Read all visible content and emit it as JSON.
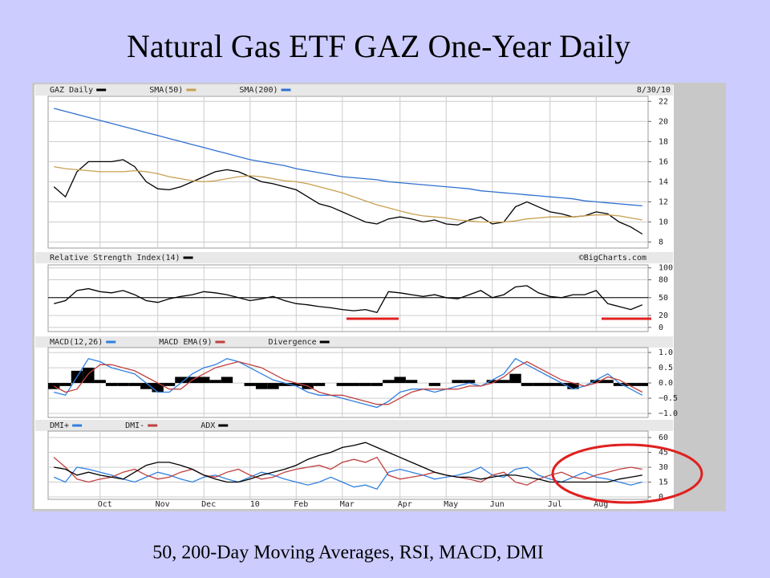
{
  "title": "Natural Gas ETF GAZ One-Year Daily",
  "caption": "50, 200-Day Moving Averages, RSI, MACD, DMI",
  "chart_data": [
    {
      "type": "line",
      "date": "8/30/10",
      "ylim": [
        7.4,
        22.5
      ],
      "yticks": [
        8,
        10,
        12,
        14,
        16,
        18,
        20,
        22
      ],
      "grid": true,
      "series": [
        {
          "name": "GAZ Daily",
          "color": "#000000",
          "values": [
            13.5,
            12.5,
            15,
            16,
            16,
            16,
            16.2,
            15.5,
            14,
            13.3,
            13.2,
            13.5,
            14,
            14.5,
            15,
            15.2,
            15,
            14.5,
            14,
            13.8,
            13.5,
            13.2,
            12.5,
            11.8,
            11.5,
            11,
            10.5,
            10,
            9.8,
            10.3,
            10.5,
            10.3,
            10,
            10.2,
            9.8,
            9.7,
            10.2,
            10.5,
            9.8,
            10,
            11.5,
            12,
            11.5,
            11,
            10.8,
            10.5,
            10.6,
            11,
            10.8,
            10,
            9.5,
            8.8
          ]
        },
        {
          "name": "SMA(50)",
          "color": "#c8a050",
          "values": [
            15.5,
            15.3,
            15.2,
            15.1,
            15.0,
            15.0,
            15.0,
            15.1,
            15.0,
            14.8,
            14.5,
            14.3,
            14.1,
            14.0,
            14.1,
            14.3,
            14.5,
            14.6,
            14.5,
            14.3,
            14.1,
            14.0,
            13.8,
            13.5,
            13.2,
            12.9,
            12.5,
            12.1,
            11.7,
            11.4,
            11.1,
            10.8,
            10.6,
            10.5,
            10.4,
            10.2,
            10.1,
            10.0,
            10.0,
            10.0,
            10.1,
            10.3,
            10.4,
            10.5,
            10.5,
            10.5,
            10.6,
            10.7,
            10.7,
            10.6,
            10.4,
            10.2
          ]
        },
        {
          "name": "SMA(200)",
          "color": "#3070d0",
          "values": [
            21.3,
            21.0,
            20.7,
            20.4,
            20.1,
            19.8,
            19.5,
            19.2,
            18.9,
            18.6,
            18.3,
            18.0,
            17.7,
            17.4,
            17.1,
            16.8,
            16.5,
            16.2,
            16.0,
            15.8,
            15.6,
            15.3,
            15.1,
            14.9,
            14.7,
            14.5,
            14.4,
            14.3,
            14.2,
            14.0,
            13.9,
            13.8,
            13.7,
            13.6,
            13.5,
            13.4,
            13.3,
            13.1,
            13.0,
            12.9,
            12.8,
            12.7,
            12.6,
            12.5,
            12.4,
            12.3,
            12.1,
            12.0,
            11.9,
            11.8,
            11.7,
            11.6
          ]
        }
      ]
    },
    {
      "type": "line",
      "source": "©BigCharts.com",
      "ylim": [
        -7,
        105
      ],
      "yticks": [
        0,
        20,
        50,
        80,
        100
      ],
      "hline": 50,
      "series": [
        {
          "name": "Relative Strength Index(14)",
          "color": "#000000",
          "values": [
            40,
            45,
            62,
            65,
            60,
            58,
            62,
            55,
            45,
            42,
            48,
            52,
            55,
            60,
            58,
            55,
            50,
            45,
            48,
            52,
            45,
            40,
            38,
            35,
            33,
            30,
            28,
            30,
            25,
            60,
            58,
            55,
            52,
            55,
            50,
            48,
            55,
            62,
            50,
            55,
            68,
            70,
            58,
            52,
            50,
            55,
            55,
            62,
            40,
            35,
            30,
            38
          ]
        }
      ]
    },
    {
      "type": "line",
      "ylim": [
        -1.13,
        1.16
      ],
      "yticks": [
        {
          "value": -1,
          "label": "−1.0"
        },
        {
          "value": -0.5,
          "label": "−0.5"
        },
        {
          "value": 0,
          "label": "0.0"
        },
        0.5,
        {
          "value": 1,
          "label": "1.0"
        }
      ],
      "series": [
        {
          "name": "MACD(12,26)",
          "color": "#3080e0",
          "values": [
            -0.3,
            -0.4,
            0.2,
            0.8,
            0.7,
            0.5,
            0.4,
            0.3,
            0.0,
            -0.3,
            -0.3,
            0.0,
            0.3,
            0.5,
            0.6,
            0.8,
            0.7,
            0.5,
            0.3,
            0.1,
            0.0,
            -0.1,
            -0.3,
            -0.4,
            -0.4,
            -0.5,
            -0.6,
            -0.7,
            -0.8,
            -0.6,
            -0.3,
            -0.2,
            -0.2,
            -0.3,
            -0.2,
            -0.1,
            0.0,
            -0.1,
            0.1,
            0.3,
            0.8,
            0.6,
            0.4,
            0.2,
            0.0,
            -0.2,
            -0.1,
            0.1,
            0.3,
            0.0,
            -0.2,
            -0.4
          ]
        },
        {
          "name": "MACD EMA(9)",
          "color": "#c04040",
          "values": [
            -0.1,
            -0.3,
            -0.2,
            0.3,
            0.6,
            0.6,
            0.5,
            0.4,
            0.2,
            0.0,
            -0.2,
            -0.2,
            0.1,
            0.3,
            0.5,
            0.6,
            0.7,
            0.6,
            0.5,
            0.3,
            0.1,
            0.0,
            -0.1,
            -0.3,
            -0.4,
            -0.4,
            -0.5,
            -0.6,
            -0.7,
            -0.7,
            -0.5,
            -0.3,
            -0.2,
            -0.2,
            -0.2,
            -0.2,
            -0.1,
            -0.1,
            0.0,
            0.2,
            0.5,
            0.7,
            0.5,
            0.3,
            0.1,
            0.0,
            -0.1,
            0.0,
            0.2,
            0.1,
            -0.1,
            -0.3
          ]
        },
        {
          "name": "Divergence",
          "color": "#000000",
          "type": "bar",
          "values": [
            -0.2,
            -0.1,
            0.4,
            0.5,
            0.1,
            -0.1,
            -0.1,
            -0.1,
            -0.2,
            -0.3,
            -0.1,
            0.2,
            0.2,
            0.2,
            0.1,
            0.2,
            0.0,
            -0.1,
            -0.2,
            -0.2,
            -0.1,
            -0.1,
            -0.2,
            -0.1,
            0.0,
            -0.1,
            -0.1,
            -0.1,
            -0.1,
            0.1,
            0.2,
            0.1,
            0.0,
            -0.1,
            0.0,
            0.1,
            0.1,
            0.0,
            0.1,
            0.1,
            0.3,
            -0.1,
            -0.1,
            -0.1,
            -0.1,
            -0.2,
            0.0,
            0.1,
            0.1,
            -0.1,
            -0.1,
            -0.1
          ]
        }
      ]
    },
    {
      "type": "line",
      "ylim": [
        -2.4,
        66.5
      ],
      "yticks": [
        0,
        15,
        30,
        45,
        60
      ],
      "categories": [
        null,
        null,
        null,
        null,
        "Oct",
        null,
        null,
        null,
        null,
        "Nov",
        null,
        null,
        null,
        "Dec",
        null,
        null,
        null,
        "10",
        null,
        null,
        null,
        "Feb",
        null,
        null,
        null,
        "Mar",
        null,
        null,
        null,
        null,
        "Apr",
        null,
        null,
        null,
        "May",
        null,
        null,
        null,
        "Jun",
        null,
        null,
        null,
        null,
        "Jul",
        null,
        null,
        null,
        "Aug",
        null,
        null,
        null,
        null
      ],
      "series": [
        {
          "name": "DMI+",
          "color": "#3080e0",
          "values": [
            20,
            15,
            30,
            28,
            25,
            22,
            18,
            15,
            20,
            25,
            22,
            18,
            15,
            20,
            22,
            18,
            15,
            20,
            25,
            22,
            18,
            15,
            12,
            15,
            20,
            15,
            10,
            12,
            8,
            25,
            28,
            25,
            22,
            18,
            20,
            22,
            25,
            30,
            22,
            20,
            28,
            30,
            22,
            18,
            15,
            20,
            25,
            20,
            18,
            15,
            12,
            15
          ]
        },
        {
          "name": "DMI-",
          "color": "#c04040",
          "values": [
            40,
            30,
            18,
            15,
            18,
            20,
            25,
            28,
            22,
            18,
            20,
            25,
            28,
            22,
            20,
            25,
            28,
            22,
            18,
            20,
            25,
            28,
            30,
            32,
            28,
            35,
            38,
            35,
            40,
            22,
            18,
            20,
            22,
            25,
            22,
            20,
            18,
            15,
            22,
            25,
            15,
            12,
            18,
            22,
            25,
            20,
            18,
            22,
            25,
            28,
            30,
            28
          ]
        },
        {
          "name": "ADX",
          "color": "#000000",
          "values": [
            30,
            28,
            22,
            25,
            22,
            20,
            18,
            25,
            32,
            35,
            35,
            32,
            28,
            22,
            18,
            15,
            15,
            18,
            22,
            25,
            28,
            32,
            38,
            42,
            45,
            50,
            52,
            55,
            50,
            45,
            40,
            35,
            30,
            25,
            22,
            20,
            20,
            18,
            20,
            22,
            22,
            20,
            18,
            15,
            15,
            15,
            15,
            15,
            15,
            18,
            20,
            22
          ]
        }
      ]
    }
  ]
}
